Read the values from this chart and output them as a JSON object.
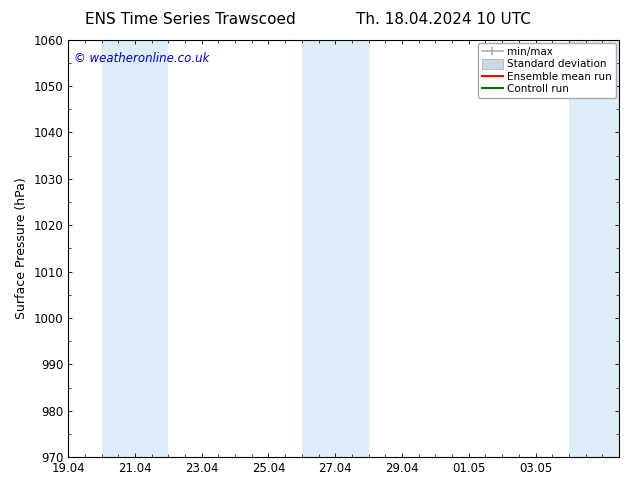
{
  "title_left": "ENS Time Series Trawscoed",
  "title_right": "Th. 18.04.2024 10 UTC",
  "ylabel": "Surface Pressure (hPa)",
  "ylim": [
    970,
    1060
  ],
  "yticks": [
    970,
    980,
    990,
    1000,
    1010,
    1020,
    1030,
    1040,
    1050,
    1060
  ],
  "xtick_labels": [
    "19.04",
    "21.04",
    "23.04",
    "25.04",
    "27.04",
    "29.04",
    "01.05",
    "03.05"
  ],
  "xtick_positions": [
    0,
    2,
    4,
    6,
    8,
    10,
    12,
    14
  ],
  "xlim": [
    0,
    16.5
  ],
  "shaded_regions": [
    {
      "start": 1.0,
      "end": 3.0,
      "color": "#ddeef8"
    },
    {
      "start": 7.0,
      "end": 9.0,
      "color": "#ddeef8"
    },
    {
      "start": 15.0,
      "end": 16.5,
      "color": "#ddeef8"
    }
  ],
  "watermark_text": "© weatheronline.co.uk",
  "watermark_color": "#0000cc",
  "background_color": "#ffffff",
  "legend_labels": [
    "min/max",
    "Standard deviation",
    "Ensemble mean run",
    "Controll run"
  ],
  "legend_colors": [
    "#999999",
    "#c8daea",
    "#ff0000",
    "#007700"
  ],
  "spine_color": "#000000",
  "tick_color": "#000000",
  "title_fontsize": 11,
  "label_fontsize": 9,
  "tick_fontsize": 8.5
}
